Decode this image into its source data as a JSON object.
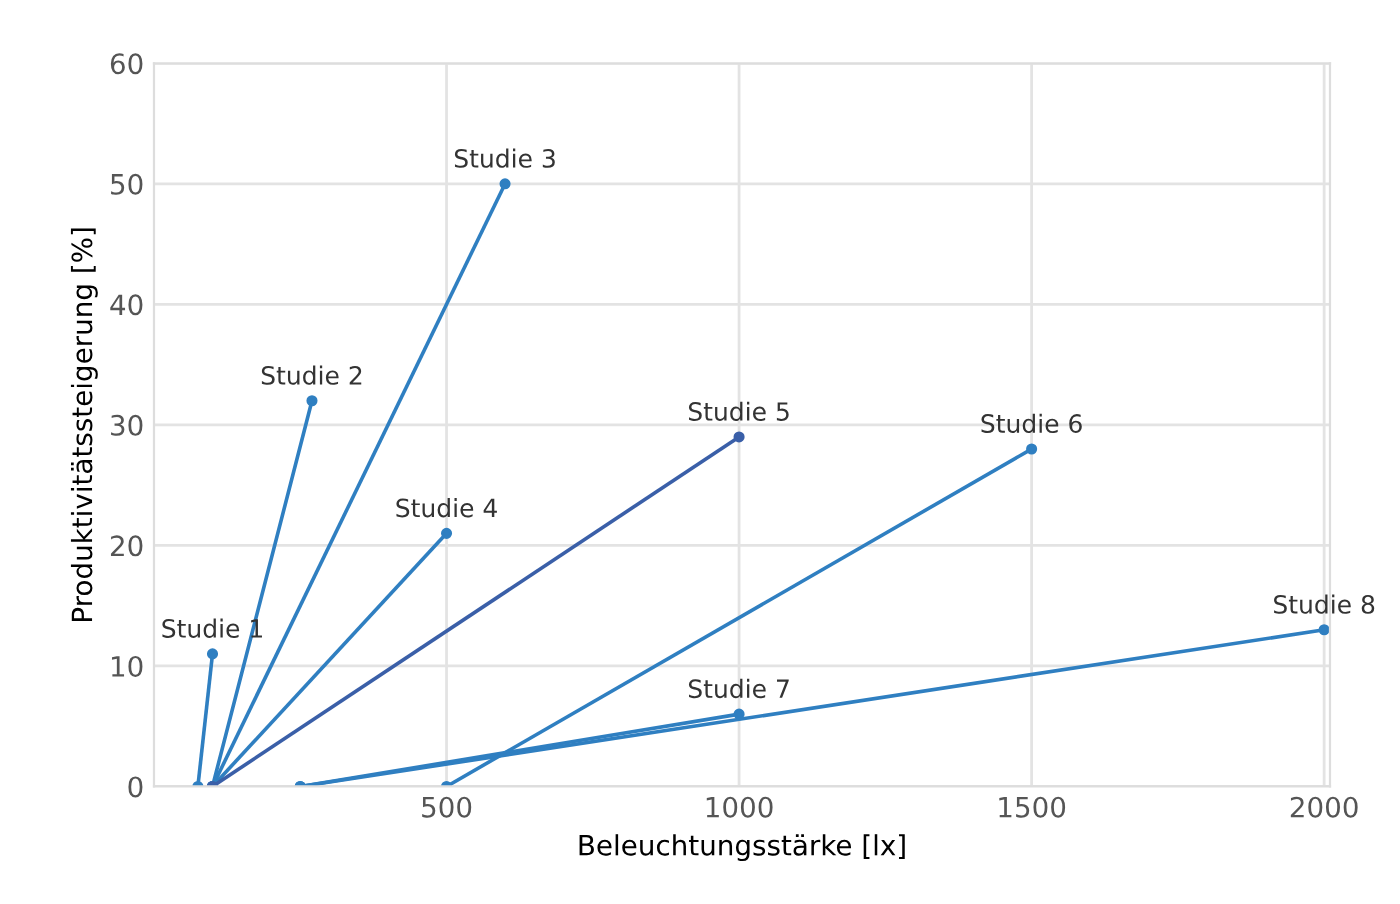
{
  "chart_data": {
    "type": "line",
    "xlabel": "Beleuchtungsstärke [lx]",
    "ylabel": "Produktivitätssteigerung [%]",
    "xlim": [
      0,
      2010
    ],
    "ylim": [
      0,
      60
    ],
    "xticks": [
      500,
      1000,
      1500,
      2000
    ],
    "yticks": [
      0,
      10,
      20,
      30,
      40,
      50,
      60
    ],
    "grid": true,
    "legend": false,
    "marker": "circle",
    "line_style": "solid",
    "series": [
      {
        "name": "Studie 1",
        "color": "#2f7fc1",
        "x": [
          75,
          100
        ],
        "values": [
          0,
          11
        ]
      },
      {
        "name": "Studie 2",
        "color": "#2f7fc1",
        "x": [
          100,
          270
        ],
        "values": [
          0,
          32
        ]
      },
      {
        "name": "Studie 3",
        "color": "#2f7fc1",
        "x": [
          100,
          600
        ],
        "values": [
          0,
          50
        ]
      },
      {
        "name": "Studie 4",
        "color": "#2f7fc1",
        "x": [
          100,
          500
        ],
        "values": [
          0,
          21
        ]
      },
      {
        "name": "Studie 5",
        "color": "#3a5fa8",
        "x": [
          100,
          1000
        ],
        "values": [
          0,
          29
        ]
      },
      {
        "name": "Studie 6",
        "color": "#2f7fc1",
        "x": [
          500,
          1500
        ],
        "values": [
          0,
          28
        ]
      },
      {
        "name": "Studie 7",
        "color": "#2f7fc1",
        "x": [
          250,
          1000
        ],
        "values": [
          0,
          6
        ]
      },
      {
        "name": "Studie 8",
        "color": "#2f7fc1",
        "x": [
          250,
          2000
        ],
        "values": [
          0,
          13
        ]
      }
    ]
  }
}
